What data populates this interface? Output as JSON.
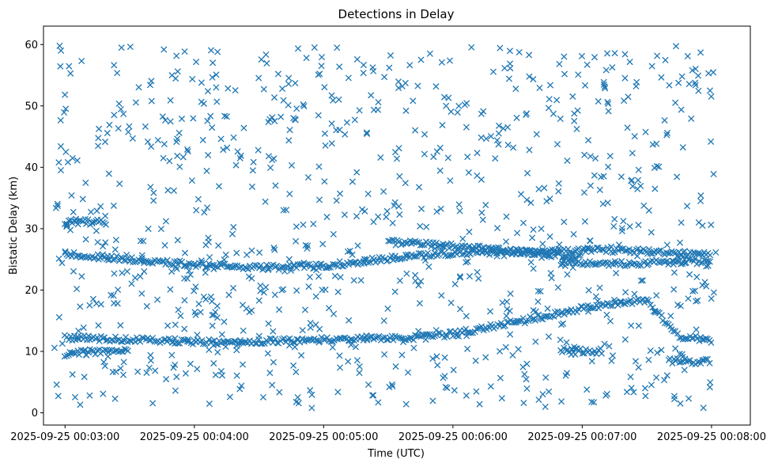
{
  "chart_data": {
    "type": "scatter",
    "title": "Detections in Delay",
    "xlabel": "Time (UTC)",
    "ylabel": "Bistatic Delay (km)",
    "marker": "x",
    "color": "#1f77b4",
    "grid": false,
    "legend": "none",
    "x_axis": {
      "start": "2025-09-25 00:02:50",
      "end": "2025-09-25 00:08:18",
      "ticks": [
        "2025-09-25 00:03:00",
        "2025-09-25 00:04:00",
        "2025-09-25 00:05:00",
        "2025-09-25 00:06:00",
        "2025-09-25 00:07:00",
        "2025-09-25 00:08:00"
      ]
    },
    "ylim": [
      -2,
      63
    ],
    "yticks": [
      "0",
      "10",
      "20",
      "30",
      "40",
      "50",
      "60"
    ],
    "ytick_values": [
      0,
      10,
      20,
      30,
      40,
      50,
      60
    ],
    "tracks": [
      {
        "x": [
          "2025-09-25 00:03:00",
          "2025-09-25 00:03:10",
          "2025-09-25 00:03:20",
          "2025-09-25 00:03:30",
          "2025-09-25 00:03:40",
          "2025-09-25 00:03:50",
          "2025-09-25 00:04:00",
          "2025-09-25 00:04:10",
          "2025-09-25 00:04:20",
          "2025-09-25 00:04:30",
          "2025-09-25 00:04:40",
          "2025-09-25 00:04:50",
          "2025-09-25 00:05:00",
          "2025-09-25 00:05:10",
          "2025-09-25 00:05:20",
          "2025-09-25 00:05:30",
          "2025-09-25 00:05:40",
          "2025-09-25 00:05:50",
          "2025-09-25 00:06:00",
          "2025-09-25 00:06:10",
          "2025-09-25 00:06:20",
          "2025-09-25 00:06:30",
          "2025-09-25 00:06:40",
          "2025-09-25 00:06:50",
          "2025-09-25 00:07:00",
          "2025-09-25 00:07:10",
          "2025-09-25 00:07:20",
          "2025-09-25 00:07:30",
          "2025-09-25 00:07:40",
          "2025-09-25 00:07:50",
          "2025-09-25 00:08:00"
        ],
        "y": [
          25.8,
          25.6,
          25.3,
          25.0,
          24.7,
          24.4,
          24.2,
          24.0,
          23.8,
          23.7,
          23.7,
          23.8,
          24.0,
          24.3,
          24.7,
          25.1,
          25.5,
          25.8,
          26.0,
          26.1,
          26.2,
          26.2,
          26.2,
          26.3,
          26.4,
          26.5,
          26.5,
          26.3,
          26.1,
          25.9,
          25.8
        ]
      },
      {
        "x": [
          "2025-09-25 00:03:00",
          "2025-09-25 00:03:15",
          "2025-09-25 00:03:30",
          "2025-09-25 00:03:45",
          "2025-09-25 00:04:00",
          "2025-09-25 00:04:15",
          "2025-09-25 00:04:30",
          "2025-09-25 00:04:45",
          "2025-09-25 00:05:00",
          "2025-09-25 00:05:15",
          "2025-09-25 00:05:30",
          "2025-09-25 00:05:45",
          "2025-09-25 00:06:00",
          "2025-09-25 00:06:15",
          "2025-09-25 00:06:30",
          "2025-09-25 00:06:45",
          "2025-09-25 00:07:00",
          "2025-09-25 00:07:15",
          "2025-09-25 00:07:30",
          "2025-09-25 00:07:45",
          "2025-09-25 00:08:00"
        ],
        "y": [
          12.2,
          12.1,
          12.0,
          11.8,
          11.6,
          11.5,
          11.6,
          11.8,
          12.0,
          12.1,
          12.2,
          12.3,
          12.9,
          13.8,
          14.8,
          15.9,
          17.0,
          17.8,
          18.3,
          12.2,
          12.0
        ]
      },
      {
        "x": [
          "2025-09-25 00:03:00",
          "2025-09-25 00:03:10",
          "2025-09-25 00:03:20",
          "2025-09-25 00:03:30"
        ],
        "y": [
          9.6,
          9.9,
          10.1,
          10.3
        ]
      },
      {
        "x": [
          "2025-09-25 00:03:00",
          "2025-09-25 00:03:10",
          "2025-09-25 00:03:20"
        ],
        "y": [
          31.2,
          31.1,
          31.0
        ]
      },
      {
        "x": [
          "2025-09-25 00:05:30",
          "2025-09-25 00:05:50",
          "2025-09-25 00:06:10",
          "2025-09-25 00:06:30",
          "2025-09-25 00:06:50",
          "2025-09-25 00:07:00"
        ],
        "y": [
          27.8,
          27.5,
          26.9,
          26.3,
          25.7,
          25.2
        ]
      },
      {
        "x": [
          "2025-09-25 00:06:50",
          "2025-09-25 00:07:00",
          "2025-09-25 00:07:10",
          "2025-09-25 00:07:20",
          "2025-09-25 00:07:30",
          "2025-09-25 00:07:40",
          "2025-09-25 00:07:50",
          "2025-09-25 00:08:00"
        ],
        "y": [
          24.5,
          24.4,
          24.3,
          24.3,
          24.4,
          24.5,
          24.6,
          24.8
        ]
      },
      {
        "x": [
          "2025-09-25 00:06:50",
          "2025-09-25 00:07:00",
          "2025-09-25 00:07:10"
        ],
        "y": [
          10.2,
          10.1,
          10.0
        ]
      },
      {
        "x": [
          "2025-09-25 00:07:40",
          "2025-09-25 00:07:50",
          "2025-09-25 00:08:00"
        ],
        "y": [
          8.5,
          8.3,
          8.3
        ]
      }
    ],
    "track_density": "dense",
    "clutter_density": "about 950 scattered detections spread over the full time range and 0–60 km delay range"
  }
}
